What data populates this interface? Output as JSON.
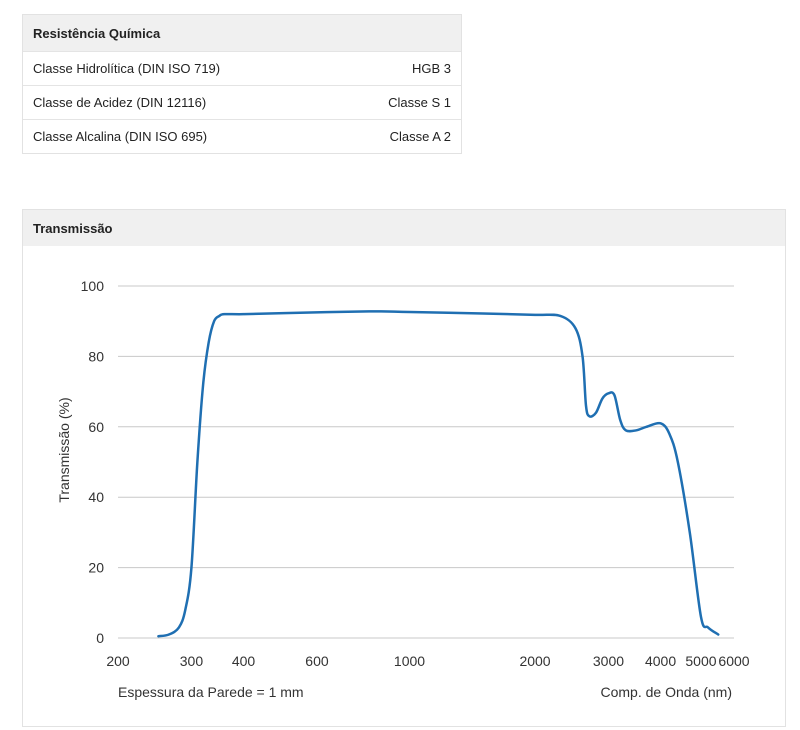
{
  "chemical_resistance": {
    "title": "Resistência Química",
    "rows": [
      {
        "label": "Classe Hidrolítica (DIN ISO 719)",
        "value": "HGB 3"
      },
      {
        "label": "Classe de Acidez (DIN 12116)",
        "value": "Classe S 1"
      },
      {
        "label": "Classe Alcalina (DIN ISO 695)",
        "value": "Classe A 2"
      }
    ]
  },
  "transmission": {
    "title": "Transmissão"
  },
  "chart_data": {
    "type": "line",
    "ylabel": "Transmissão (%)",
    "xlabel_left": "Espessura da Parede = 1 mm",
    "xlabel_right": "Comp. de Onda (nm)",
    "x_scale": "log",
    "xlim": [
      200,
      6000
    ],
    "ylim": [
      0,
      100
    ],
    "x_ticks": [
      200,
      300,
      400,
      600,
      1000,
      2000,
      3000,
      4000,
      5000,
      6000
    ],
    "y_ticks": [
      0,
      20,
      40,
      60,
      80,
      100
    ],
    "grid": true,
    "line_color": "#1f6fb2",
    "series": [
      {
        "x": [
          250,
          265,
          280,
          290,
          300,
          310,
          320,
          330,
          340,
          350,
          360,
          400,
          500,
          800,
          1000,
          1500,
          2000,
          2300,
          2500,
          2600,
          2650,
          2700,
          2800,
          2900,
          3000,
          3100,
          3200,
          3300,
          3500,
          3700,
          4000,
          4200,
          4400,
          4700,
          5000,
          5200,
          5500
        ],
        "y": [
          0.5,
          1,
          3,
          8,
          20,
          50,
          72,
          84,
          90,
          91.5,
          92,
          92,
          92.3,
          92.8,
          92.6,
          92.2,
          91.8,
          91.5,
          88,
          80,
          66,
          63,
          64,
          68,
          69.5,
          69,
          62,
          59,
          59,
          60,
          61,
          58,
          50,
          30,
          6,
          3,
          1
        ]
      }
    ]
  }
}
